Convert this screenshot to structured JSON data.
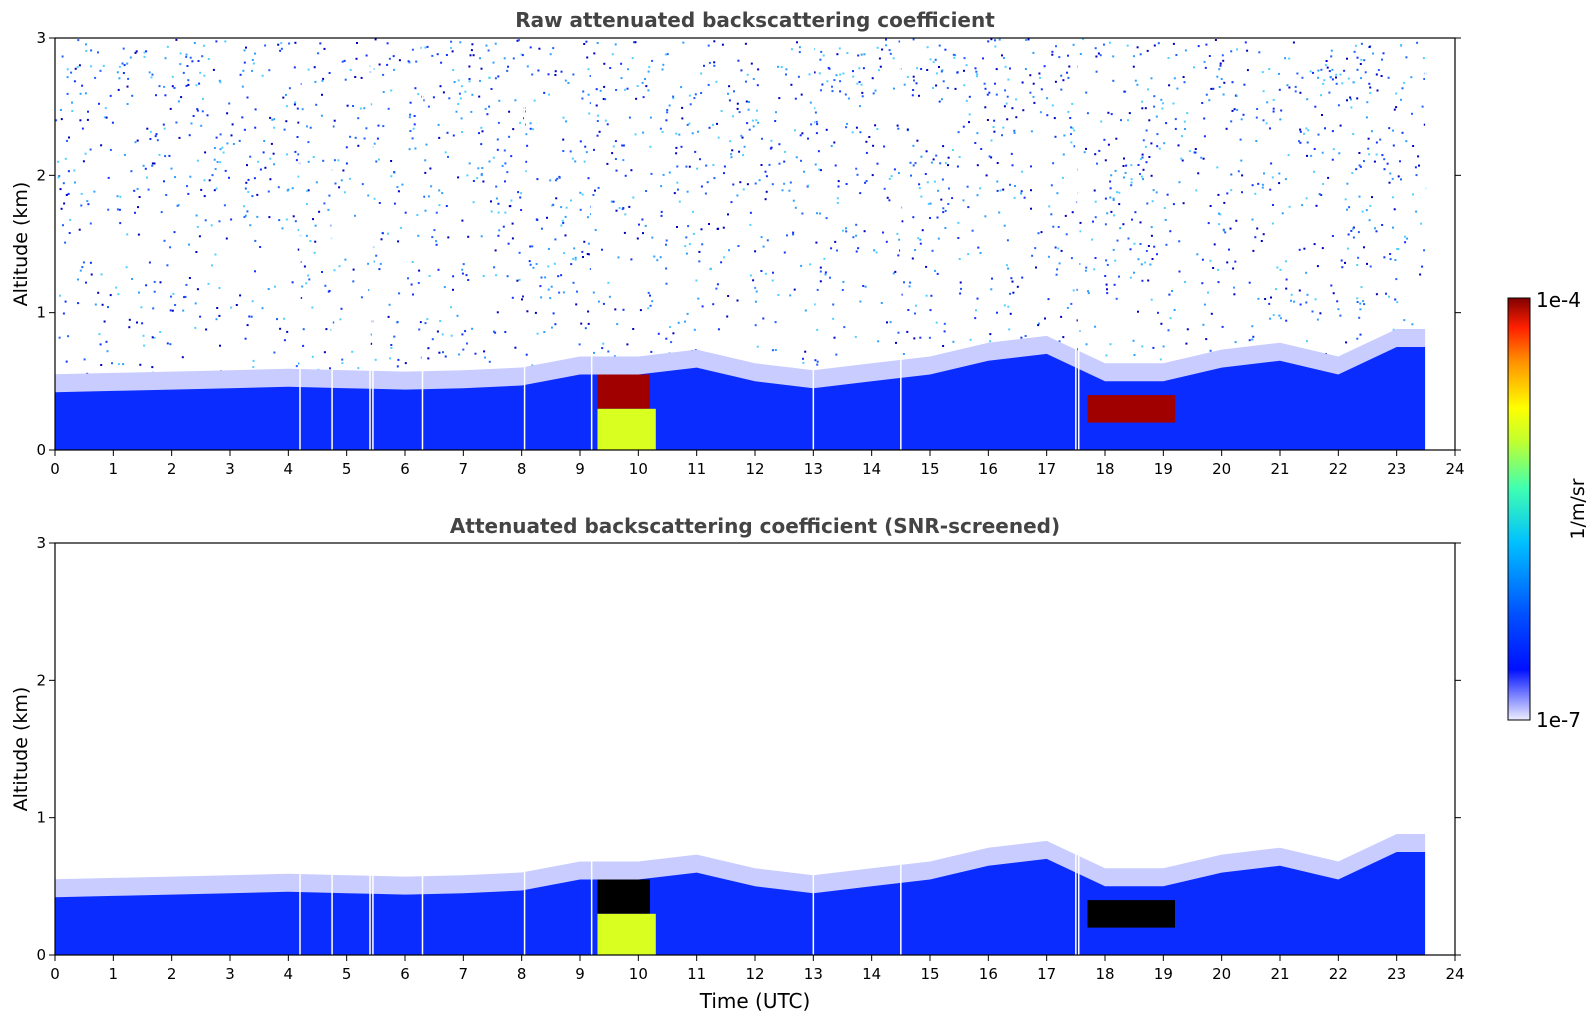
{
  "colorbar": {
    "max_label": "1e-4",
    "min_label": "1e-7",
    "unit_label": "1/m/sr",
    "vmin": 1e-07,
    "vmax": 0.0001,
    "scale": "log",
    "colormap": "jet",
    "stops": [
      "#eeeeff",
      "#0010ff",
      "#0050ff",
      "#00c0ff",
      "#40ffb0",
      "#c0ff30",
      "#ffff00",
      "#ff9000",
      "#ff2000",
      "#800000"
    ]
  },
  "chart_data": [
    {
      "type": "heatmap",
      "title": "Raw attenuated backscattering coefficient",
      "xlabel": "",
      "ylabel": "Altitude (km)",
      "xlim": [
        0,
        24
      ],
      "ylim": [
        0,
        3
      ],
      "xticks": [
        "0",
        "1",
        "2",
        "3",
        "4",
        "5",
        "6",
        "7",
        "8",
        "9",
        "10",
        "11",
        "12",
        "13",
        "14",
        "15",
        "16",
        "17",
        "18",
        "19",
        "20",
        "21",
        "22",
        "23",
        "24"
      ],
      "yticks": [
        "0",
        "1",
        "2",
        "3"
      ],
      "boundary_layer_top_km": [
        0.42,
        0.43,
        0.44,
        0.45,
        0.46,
        0.45,
        0.44,
        0.45,
        0.47,
        0.55,
        0.55,
        0.6,
        0.5,
        0.45,
        0.5,
        0.55,
        0.65,
        0.7,
        0.5,
        0.5,
        0.6,
        0.65,
        0.55,
        0.75
      ],
      "noise_texture": true,
      "features": [
        {
          "name": "aerosol-layer-morning",
          "x": [
            9.3,
            10.2
          ],
          "y": [
            0.3,
            0.55
          ],
          "level": "high"
        },
        {
          "name": "precipitation-morning",
          "x": [
            9.3,
            10.3
          ],
          "y": [
            0.0,
            0.3
          ],
          "level": "medium"
        },
        {
          "name": "aerosol-layer-evening",
          "x": [
            17.7,
            19.2
          ],
          "y": [
            0.2,
            0.4
          ],
          "level": "high"
        }
      ],
      "data_gaps_hours": [
        4.2,
        4.75,
        5.4,
        5.45,
        6.3,
        8.05,
        9.2,
        13.0,
        14.5,
        17.5,
        17.55,
        23.5
      ]
    },
    {
      "type": "heatmap",
      "title": "Attenuated backscattering coefficient (SNR-screened)",
      "xlabel": "Time (UTC)",
      "ylabel": "Altitude (km)",
      "xlim": [
        0,
        24
      ],
      "ylim": [
        0,
        3
      ],
      "xticks": [
        "0",
        "1",
        "2",
        "3",
        "4",
        "5",
        "6",
        "7",
        "8",
        "9",
        "10",
        "11",
        "12",
        "13",
        "14",
        "15",
        "16",
        "17",
        "18",
        "19",
        "20",
        "21",
        "22",
        "23",
        "24"
      ],
      "yticks": [
        "0",
        "1",
        "2",
        "3"
      ],
      "boundary_layer_top_km": [
        0.42,
        0.43,
        0.44,
        0.45,
        0.46,
        0.45,
        0.44,
        0.45,
        0.47,
        0.55,
        0.55,
        0.6,
        0.5,
        0.45,
        0.5,
        0.55,
        0.65,
        0.7,
        0.5,
        0.5,
        0.6,
        0.65,
        0.55,
        0.75
      ],
      "noise_texture": false,
      "features": [
        {
          "name": "aerosol-layer-morning",
          "x": [
            9.3,
            10.2
          ],
          "y": [
            0.3,
            0.55
          ],
          "level": "saturated"
        },
        {
          "name": "precipitation-morning",
          "x": [
            9.3,
            10.3
          ],
          "y": [
            0.0,
            0.3
          ],
          "level": "medium"
        },
        {
          "name": "aerosol-layer-evening",
          "x": [
            17.7,
            19.2
          ],
          "y": [
            0.2,
            0.4
          ],
          "level": "saturated"
        }
      ],
      "data_gaps_hours": [
        4.2,
        4.75,
        5.4,
        5.45,
        6.3,
        8.05,
        9.2,
        13.0,
        14.5,
        17.5,
        17.55,
        23.5
      ]
    }
  ]
}
